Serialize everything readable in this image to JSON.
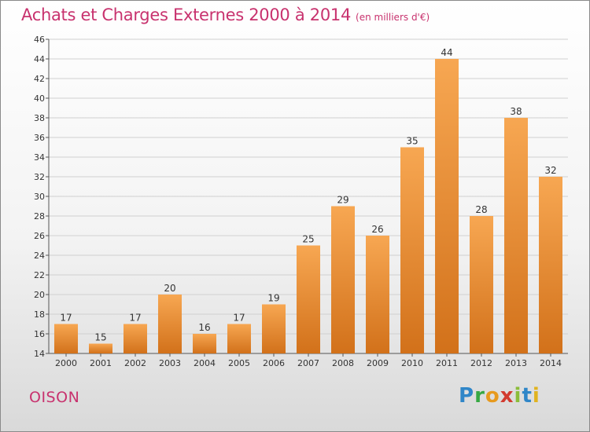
{
  "header": {
    "title": "Achats et Charges Externes 2000 à 2014",
    "subtitle": "(en milliers d'€)"
  },
  "footer": {
    "place": "OISON",
    "logo_letters": [
      "P",
      "r",
      "o",
      "x",
      "i",
      "t",
      "i"
    ]
  },
  "colors": {
    "bar_light": "#f7a752",
    "bar_dark": "#d2711a",
    "title": "#c8326e",
    "grid": "#d0d0d0"
  },
  "chart_data": {
    "type": "bar",
    "categories": [
      "2000",
      "2001",
      "2002",
      "2003",
      "2004",
      "2005",
      "2006",
      "2007",
      "2008",
      "2009",
      "2010",
      "2011",
      "2012",
      "2013",
      "2014"
    ],
    "values": [
      17,
      15,
      17,
      20,
      16,
      17,
      19,
      25,
      29,
      26,
      35,
      44,
      28,
      38,
      32
    ],
    "title": "Achats et Charges Externes 2000 à 2014",
    "ylim": [
      14,
      46
    ],
    "yticks": [
      14,
      16,
      18,
      20,
      22,
      24,
      26,
      28,
      30,
      32,
      34,
      36,
      38,
      40,
      42,
      44,
      46
    ],
    "grid": true,
    "data_labels": true
  }
}
